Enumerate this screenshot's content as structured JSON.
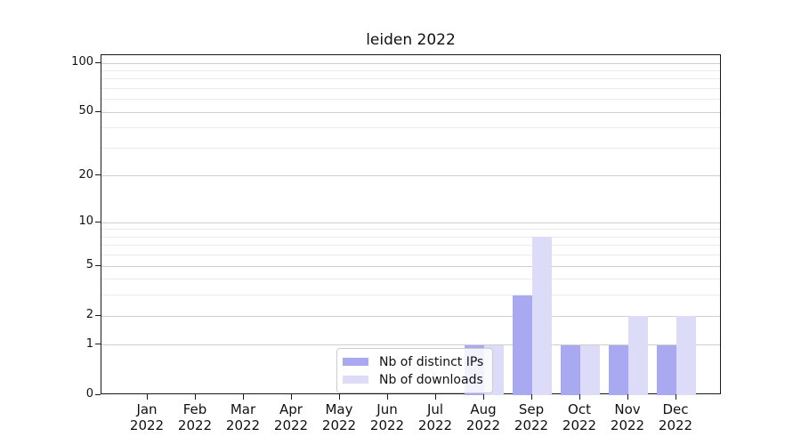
{
  "title": "leiden 2022",
  "chart_data": {
    "type": "bar",
    "title": "leiden 2022",
    "categories": [
      "Jan 2022",
      "Feb 2022",
      "Mar 2022",
      "Apr 2022",
      "May 2022",
      "Jun 2022",
      "Jul 2022",
      "Aug 2022",
      "Sep 2022",
      "Oct 2022",
      "Nov 2022",
      "Dec 2022"
    ],
    "series": [
      {
        "name": "Nb of distinct IPs",
        "color": "#a9a9f2",
        "values": [
          0,
          0,
          0,
          0,
          0,
          0,
          0,
          1,
          3,
          1,
          1,
          1
        ]
      },
      {
        "name": "Nb of downloads",
        "color": "#dcdcf8",
        "values": [
          0,
          0,
          0,
          0,
          0,
          0,
          0,
          1,
          8,
          1,
          2,
          2
        ]
      }
    ],
    "xlabel": "",
    "ylabel": "",
    "yscale": "log1p",
    "ylim": [
      0,
      110
    ],
    "y_ticks": [
      {
        "value": 0,
        "label": "0"
      },
      {
        "value": 1,
        "label": "1"
      },
      {
        "value": 2,
        "label": "2"
      },
      {
        "value": 5,
        "label": "5"
      },
      {
        "value": 10,
        "label": "10"
      },
      {
        "value": 20,
        "label": "20"
      },
      {
        "value": 50,
        "label": "50"
      },
      {
        "value": 100,
        "label": "100"
      }
    ],
    "y_minor_ticks": [
      3,
      4,
      6,
      7,
      8,
      9,
      30,
      40,
      60,
      70,
      80,
      90
    ],
    "grid": true,
    "legend_position": "inside bottom center-left"
  },
  "colors": {
    "grid_major": "#cfcfcf",
    "grid_minor": "#ebebeb",
    "spine": "#1a1a1a",
    "background": "#ffffff",
    "legend_border": "#cccccc"
  }
}
